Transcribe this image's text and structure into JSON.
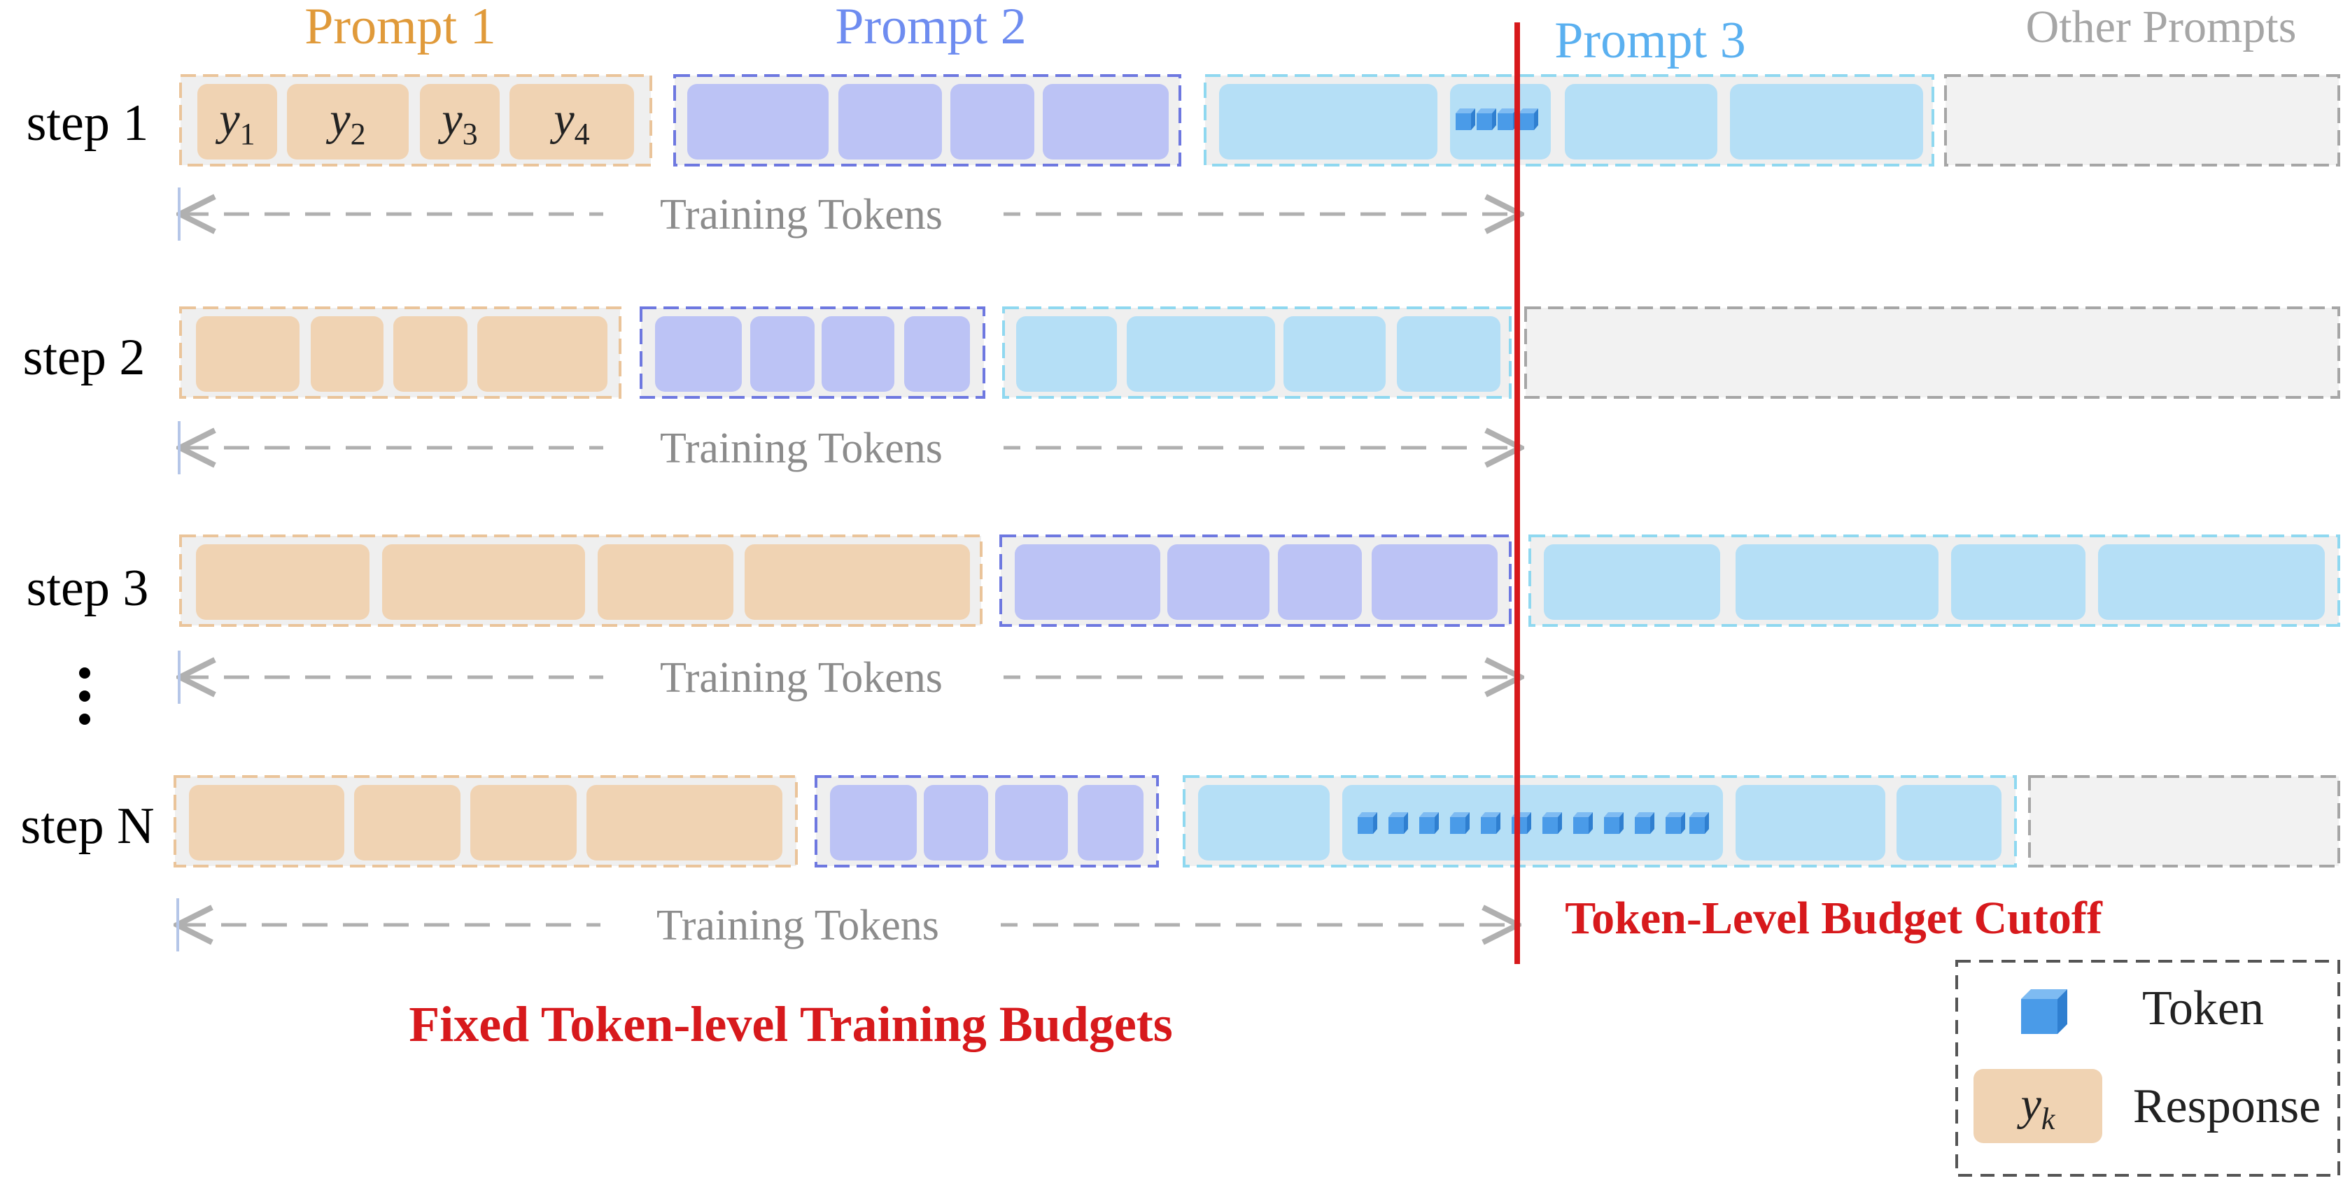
{
  "colors": {
    "p1_fill": "#F0D3B3",
    "p1_border": "#EAC49A",
    "p1_title": "#E09A3A",
    "p2_fill": "#BCC3F5",
    "p2_border": "#6E78E0",
    "p2_title": "#6E8CF0",
    "p3_fill": "#B5DFF6",
    "p3_border": "#8FD8F0",
    "p3_title": "#5AB0F0",
    "other_fill": "#F2F2F2",
    "other_border": "#A6A6A6",
    "other_title": "#A6A6A6",
    "group_bg": "#EFEFEF",
    "cutoff": "#D7191C",
    "arrow": "#B0B0B0",
    "token_cube": "#4A9BE8"
  },
  "headers": {
    "prompt1": "Prompt 1",
    "prompt2": "Prompt 2",
    "prompt3": "Prompt 3",
    "other": "Other Prompts"
  },
  "steps": [
    {
      "label": "step 1",
      "arrow_label": "Training Tokens",
      "groups": [
        {
          "kind": "p1",
          "responses": [
            "y1",
            "y2",
            "y3",
            "y4"
          ]
        },
        {
          "kind": "p2",
          "responses": [
            "",
            "",
            "",
            ""
          ]
        },
        {
          "kind": "p3",
          "responses": [
            "",
            "",
            "",
            ""
          ]
        },
        {
          "kind": "other",
          "responses": []
        }
      ]
    },
    {
      "label": "step 2",
      "arrow_label": "Training Tokens",
      "groups": [
        {
          "kind": "p1",
          "responses": [
            "",
            "",
            "",
            ""
          ]
        },
        {
          "kind": "p2",
          "responses": [
            "",
            "",
            "",
            ""
          ]
        },
        {
          "kind": "p3",
          "responses": [
            "",
            "",
            "",
            ""
          ]
        },
        {
          "kind": "other",
          "responses": []
        }
      ]
    },
    {
      "label": "step 3",
      "arrow_label": "Training Tokens",
      "groups": [
        {
          "kind": "p1",
          "responses": [
            "",
            "",
            "",
            ""
          ]
        },
        {
          "kind": "p2",
          "responses": [
            "",
            "",
            "",
            ""
          ]
        },
        {
          "kind": "p3",
          "responses": [
            "",
            "",
            "",
            ""
          ]
        }
      ]
    },
    {
      "label": "step N",
      "arrow_label": "Training Tokens",
      "groups": [
        {
          "kind": "p1",
          "responses": [
            "",
            "",
            "",
            ""
          ]
        },
        {
          "kind": "p2",
          "responses": [
            "",
            "",
            "",
            ""
          ]
        },
        {
          "kind": "p3",
          "responses": [
            "",
            "",
            "",
            ""
          ]
        },
        {
          "kind": "other",
          "responses": []
        }
      ]
    }
  ],
  "ellipsis": "⋮",
  "cutoff_label": "Token-Level Budget Cutoff",
  "footer_title": "Fixed Token-level Training Budgets",
  "legend": {
    "token_label": "Token",
    "response_symbol": "yk",
    "response_label": "Response"
  }
}
